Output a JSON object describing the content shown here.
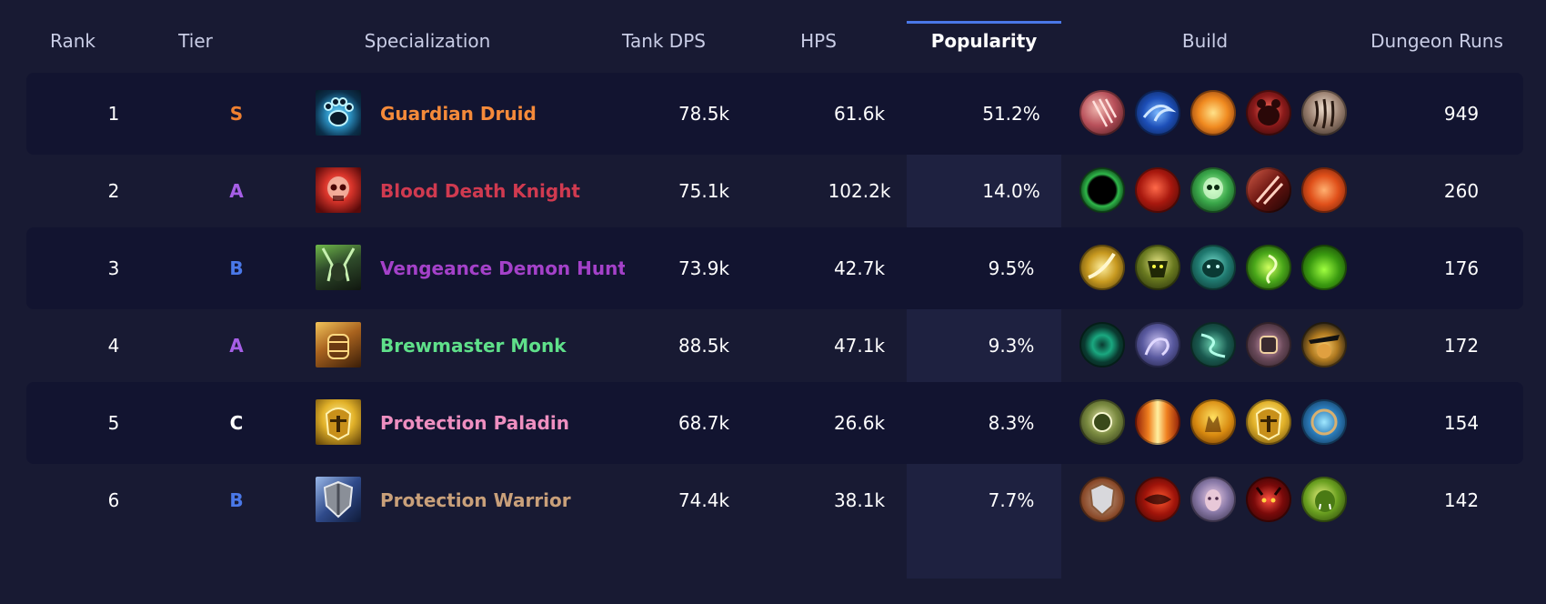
{
  "columns": {
    "rank": "Rank",
    "tier": "Tier",
    "specialization": "Specialization",
    "tank_dps": "Tank DPS",
    "hps": "HPS",
    "popularity": "Popularity",
    "build": "Build",
    "dungeon_runs": "Dungeon Runs"
  },
  "sorted_column": "popularity",
  "tier_colors": {
    "S": "#ef8030",
    "A": "#a65fe6",
    "B": "#4a78e8",
    "C": "#ffffff"
  },
  "rows": [
    {
      "rank": "1",
      "tier": "S",
      "spec": "Guardian Druid",
      "spec_color": "#f58a3a",
      "tank_dps": "78.5k",
      "hps": "61.6k",
      "popularity": "51.2%",
      "dungeon_runs": "949",
      "spec_icon": "bear-paw-icon",
      "build": [
        "claw-slash-icon",
        "blue-swirl-icon",
        "flame-orb-icon",
        "red-bear-icon",
        "bear-claw-icon"
      ]
    },
    {
      "rank": "2",
      "tier": "A",
      "spec": "Blood Death Knight",
      "spec_color": "#d03a50",
      "tank_dps": "75.1k",
      "hps": "102.2k",
      "popularity": "14.0%",
      "dungeon_runs": "260",
      "spec_icon": "blood-skull-icon",
      "build": [
        "green-portal-icon",
        "blood-orb-icon",
        "green-skull-icon",
        "blood-blades-icon",
        "red-rune-icon"
      ]
    },
    {
      "rank": "3",
      "tier": "B",
      "spec": "Vengeance Demon Hunter",
      "spec_color": "#a441c9",
      "tank_dps": "73.9k",
      "hps": "42.7k",
      "popularity": "9.5%",
      "dungeon_runs": "176",
      "spec_icon": "demon-horns-icon",
      "build": [
        "golden-blade-icon",
        "demon-mask-icon",
        "teal-beast-icon",
        "fel-swirl-icon",
        "fel-fire-icon"
      ]
    },
    {
      "rank": "4",
      "tier": "A",
      "spec": "Brewmaster Monk",
      "spec_color": "#5fe08a",
      "tank_dps": "88.5k",
      "hps": "47.1k",
      "popularity": "9.3%",
      "dungeon_runs": "172",
      "spec_icon": "brew-keg-icon",
      "build": [
        "jade-vortex-icon",
        "spirit-dragon-icon",
        "serpent-icon",
        "fist-rune-icon",
        "monk-hat-icon"
      ]
    },
    {
      "rank": "5",
      "tier": "C",
      "spec": "Protection Paladin",
      "spec_color": "#ee8fc0",
      "tank_dps": "68.7k",
      "hps": "26.6k",
      "popularity": "8.3%",
      "dungeon_runs": "154",
      "spec_icon": "golden-helm-icon",
      "build": [
        "holy-crest-icon",
        "holy-light-icon",
        "divine-guard-icon",
        "golden-helm-icon",
        "blue-shield-icon"
      ]
    },
    {
      "rank": "6",
      "tier": "B",
      "spec": "Protection Warrior",
      "spec_color": "#c9a07a",
      "tank_dps": "74.4k",
      "hps": "38.1k",
      "popularity": "7.7%",
      "dungeon_runs": "142",
      "spec_icon": "warrior-shield-icon",
      "build": [
        "round-shield-icon",
        "red-charge-icon",
        "spirit-face-icon",
        "demon-face-icon",
        "orc-face-icon"
      ]
    }
  ]
}
